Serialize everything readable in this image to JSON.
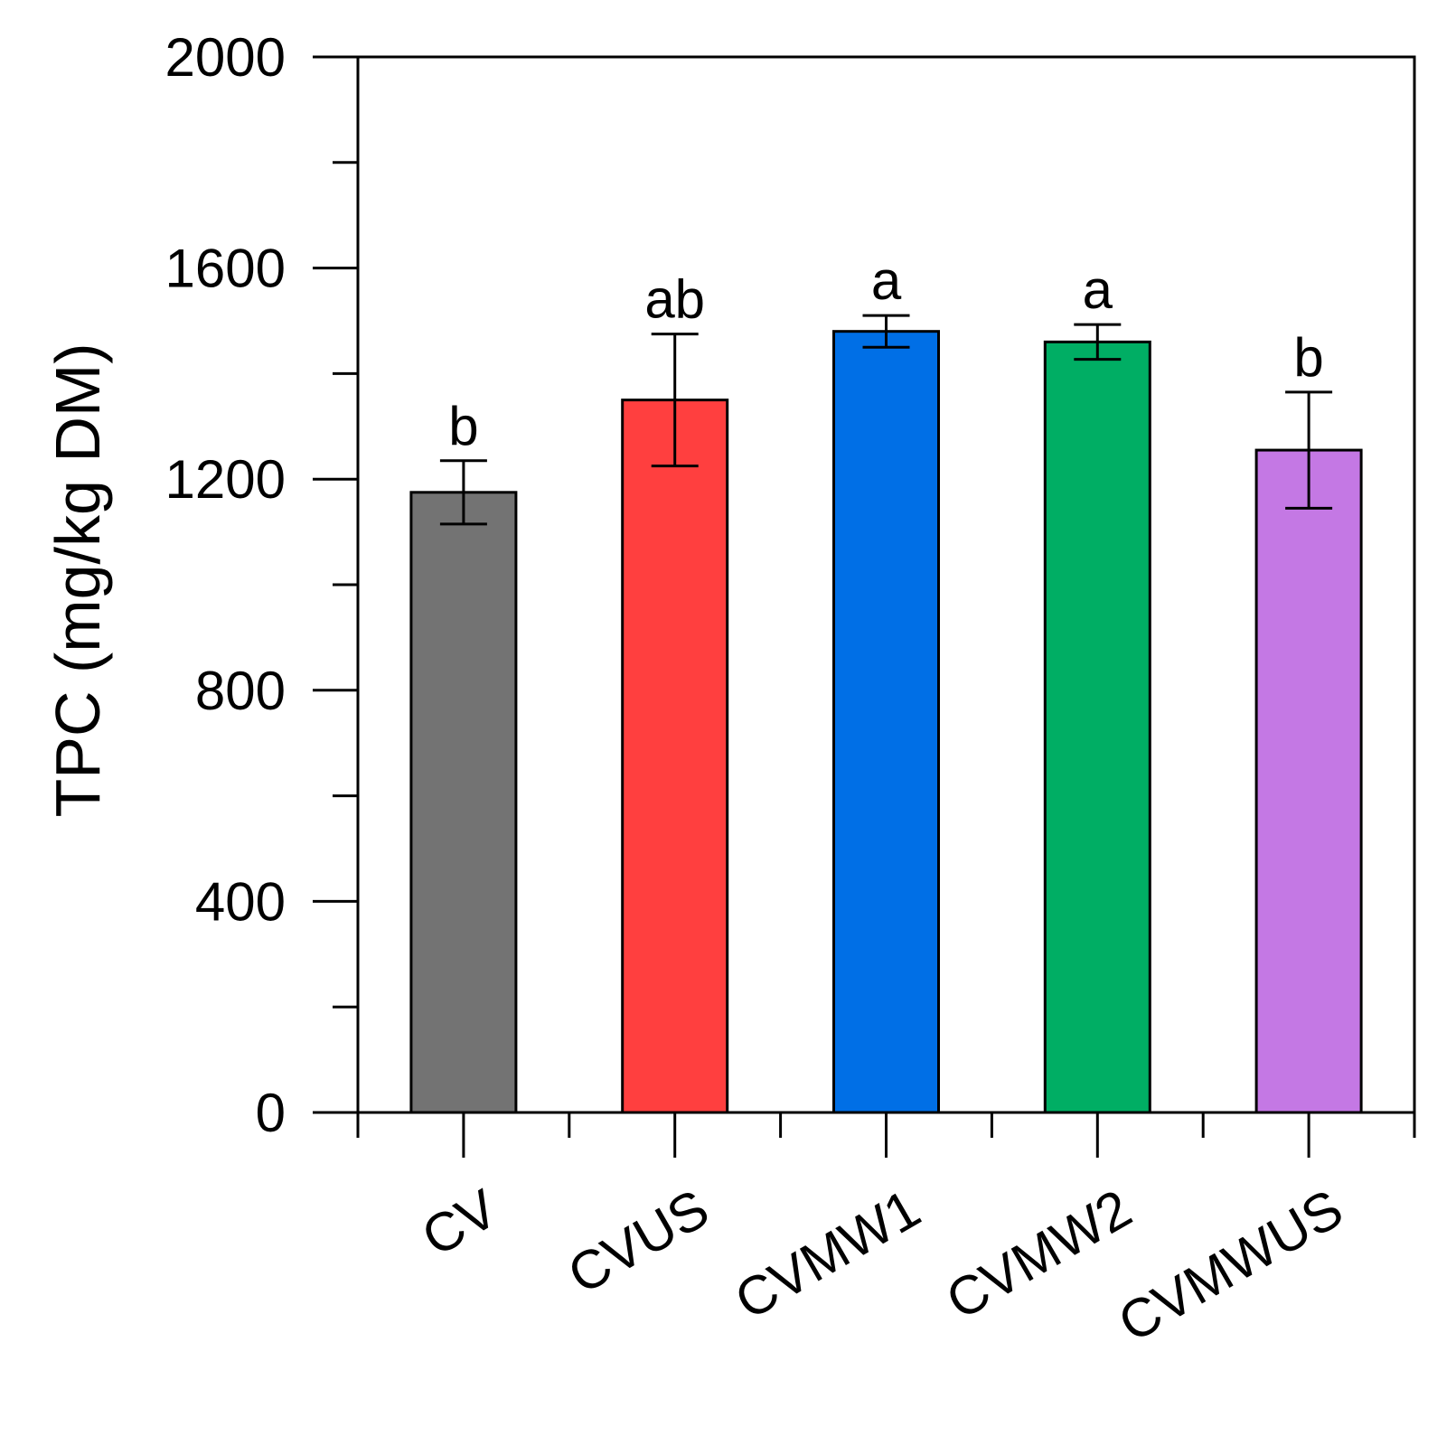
{
  "chart_data": {
    "type": "bar",
    "title": "",
    "xlabel": "",
    "ylabel": "TPC (mg/kg DM)",
    "ylim": [
      0,
      2000
    ],
    "yticks": [
      0,
      400,
      800,
      1200,
      1600,
      2000
    ],
    "categories": [
      "CV",
      "CVUS",
      "CVMW1",
      "CVMW2",
      "CVMWUS"
    ],
    "values": [
      1175,
      1350,
      1480,
      1460,
      1255
    ],
    "errors": [
      60,
      125,
      30,
      33,
      110
    ],
    "significance": [
      "b",
      "ab",
      "a",
      "a",
      "b"
    ],
    "colors": [
      "#737373",
      "#ff3f3f",
      "#006fe6",
      "#00ae64",
      "#c478e4"
    ]
  }
}
